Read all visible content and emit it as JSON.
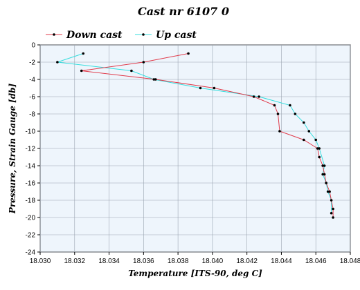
{
  "chart_data": {
    "type": "line",
    "title": "Cast nr 6107 0",
    "xlabel": "Temperature [ITS-90, deg C]",
    "ylabel": "Pressure, Strain Gauge [db]",
    "xlim": [
      18.03,
      18.048
    ],
    "ylim": [
      -24,
      0
    ],
    "x_ticks": [
      "18.030",
      "18.032",
      "18.034",
      "18.036",
      "18.038",
      "18.040",
      "18.042",
      "18.044",
      "18.046",
      "18.048"
    ],
    "y_ticks": [
      "0",
      "-2",
      "-4",
      "-6",
      "-8",
      "-10",
      "-12",
      "-14",
      "-16",
      "-18",
      "-20",
      "-22",
      "-24"
    ],
    "grid": true,
    "legend_position": "top",
    "series": [
      {
        "name": "Down cast",
        "color": "#e03a4a",
        "x": [
          18.0386,
          18.036,
          18.0324,
          18.0367,
          18.0401,
          18.0424,
          18.0436,
          18.0438,
          18.0439,
          18.0453,
          18.0461,
          18.0462,
          18.0464,
          18.0465,
          18.0466,
          18.0468,
          18.047,
          18.047
        ],
        "y": [
          -1.0,
          -2.0,
          -3.0,
          -4.0,
          -5.0,
          -6.0,
          -7.0,
          -8.0,
          -10.0,
          -11.0,
          -12.0,
          -13.0,
          -14.0,
          -15.0,
          -16.0,
          -17.0,
          -19.0,
          -20.0
        ]
      },
      {
        "name": "Up cast",
        "color": "#33dddd",
        "x": [
          18.0325,
          18.031,
          18.0353,
          18.0366,
          18.0393,
          18.0427,
          18.0445,
          18.0448,
          18.0453,
          18.0456,
          18.046,
          18.0462,
          18.0465,
          18.0464,
          18.0466,
          18.0467,
          18.0469,
          18.0469
        ],
        "y": [
          -1.0,
          -2.0,
          -3.0,
          -4.0,
          -5.0,
          -6.0,
          -7.0,
          -8.0,
          -9.0,
          -10.0,
          -11.0,
          -12.0,
          -14.0,
          -15.0,
          -16.0,
          -17.0,
          -18.0,
          -19.5
        ]
      }
    ]
  }
}
